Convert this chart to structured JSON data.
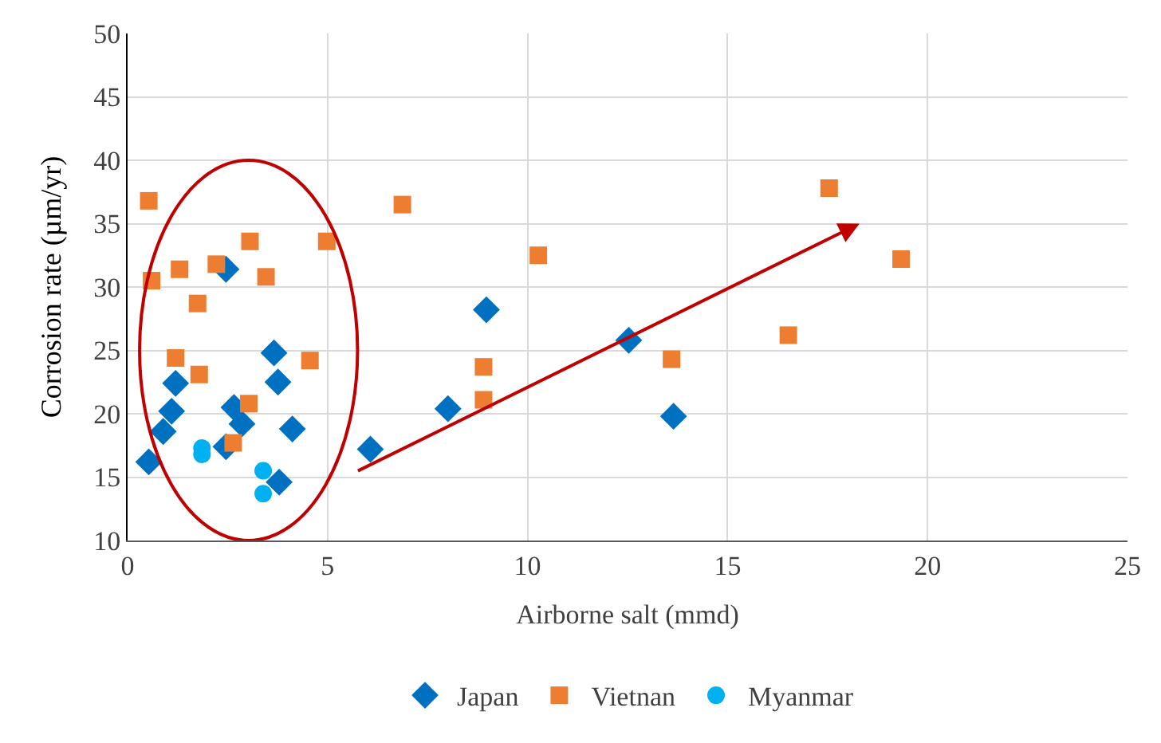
{
  "chart_data": {
    "type": "scatter",
    "xlabel": "Airborne salt (mmd)",
    "ylabel": "Corrosion rate (µm/yr)",
    "xlim": [
      0,
      25
    ],
    "xticks": [
      0,
      5,
      10,
      15,
      20,
      25
    ],
    "ylim": [
      10,
      50
    ],
    "yticks": [
      10,
      15,
      20,
      25,
      30,
      35,
      40,
      45,
      50
    ],
    "grid": true,
    "legend": "bottom",
    "series": [
      {
        "name": "Japan",
        "color": "#0070c0",
        "marker": "diamond",
        "x": [
          0.53,
          0.89,
          1.1,
          1.2,
          2.46,
          2.46,
          2.66,
          2.86,
          3.66,
          3.76,
          4.12,
          3.79,
          6.07,
          8.01,
          8.97,
          12.53,
          13.65
        ],
        "values": [
          16.2,
          18.6,
          20.2,
          22.4,
          31.4,
          17.4,
          20.5,
          19.2,
          24.8,
          22.5,
          18.8,
          14.6,
          17.2,
          20.4,
          28.2,
          25.8,
          19.8
        ]
      },
      {
        "name": "Vietnan",
        "color": "#ed7d31",
        "marker": "square",
        "x": [
          0.53,
          0.6,
          1.3,
          2.22,
          3.06,
          4.98,
          3.46,
          1.75,
          1.2,
          1.79,
          4.56,
          3.03,
          2.64,
          6.87,
          10.27,
          8.9,
          8.9,
          13.6,
          16.52,
          17.54,
          19.34
        ],
        "values": [
          36.8,
          30.5,
          31.4,
          31.8,
          33.6,
          33.6,
          30.8,
          28.7,
          24.4,
          23.1,
          24.2,
          20.8,
          17.7,
          36.5,
          32.5,
          23.7,
          21.1,
          24.3,
          26.2,
          37.8,
          32.2
        ]
      },
      {
        "name": "Myanmar",
        "color": "#00b0f0",
        "marker": "circle",
        "x": [
          1.86,
          1.86,
          3.39,
          3.39
        ],
        "values": [
          17.3,
          16.8,
          15.5,
          13.7
        ]
      }
    ]
  }
}
